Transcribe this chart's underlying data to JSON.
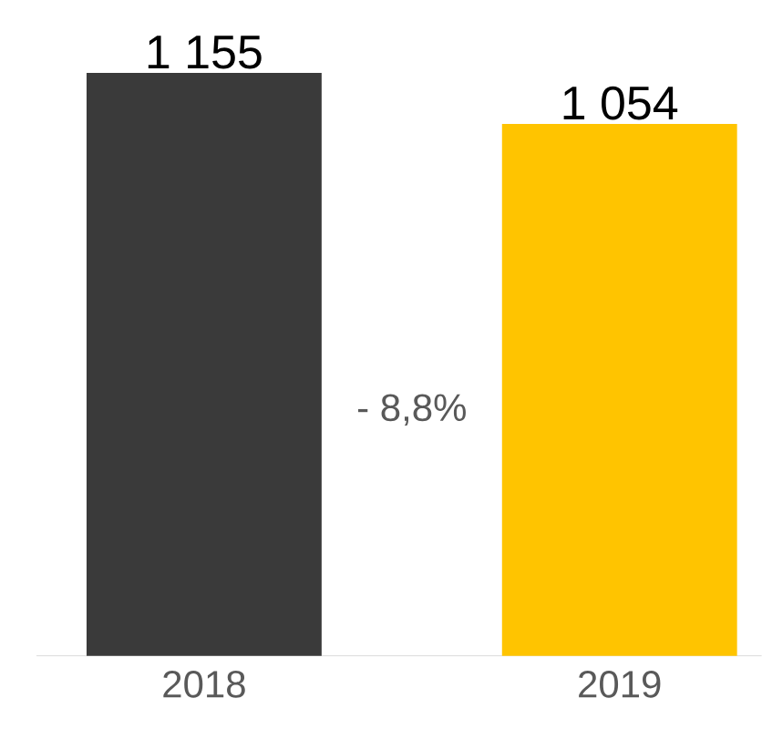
{
  "chart_data": {
    "type": "bar",
    "categories": [
      "2018",
      "2019"
    ],
    "values": [
      1155,
      1054
    ],
    "value_labels": [
      "1 155",
      "1 054"
    ],
    "colors": [
      "#3a3a3a",
      "#ffc400"
    ],
    "annotations": [
      "- 8,8%"
    ]
  }
}
